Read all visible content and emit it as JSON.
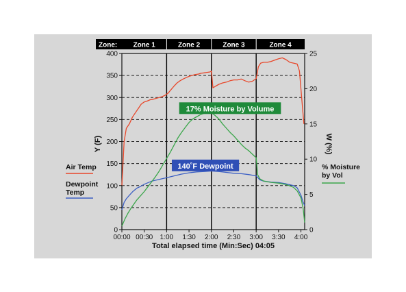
{
  "chart_data": {
    "type": "line",
    "zones": {
      "header": "Zone:",
      "labels": [
        "Zone 1",
        "Zone 2",
        "Zone 3",
        "Zone 4"
      ],
      "boundaries": [
        0,
        60,
        120,
        180,
        245
      ]
    },
    "xlabel": "Total elapsed time (Min:Sec) 04:05",
    "x_ticks": [
      {
        "t": 0,
        "label": "00:00"
      },
      {
        "t": 30,
        "label": "00:30"
      },
      {
        "t": 60,
        "label": "1:00"
      },
      {
        "t": 90,
        "label": "1:30"
      },
      {
        "t": 120,
        "label": "2:00"
      },
      {
        "t": 150,
        "label": "2:30"
      },
      {
        "t": 180,
        "label": "3:00"
      },
      {
        "t": 210,
        "label": "3:30"
      },
      {
        "t": 240,
        "label": "4:00"
      }
    ],
    "xlim": [
      0,
      245
    ],
    "ylabel_left": "Y (F)",
    "ylim_left": [
      0,
      400
    ],
    "yticks_left": [
      0,
      50,
      100,
      150,
      200,
      250,
      300,
      350,
      400
    ],
    "ylabel_right": "W (%)",
    "ylim_right": [
      0,
      25
    ],
    "yticks_right": [
      0,
      5,
      10,
      15,
      20,
      25
    ],
    "grid": "horizontal-dashed",
    "annotations": [
      {
        "text": "17% Moisture by Volume",
        "color": "#1f8a3a",
        "x": 145,
        "y_left": 275
      },
      {
        "text": "140˚F Dewpoint",
        "color": "#2f4fb6",
        "x": 112,
        "y_left": 145
      }
    ],
    "series": [
      {
        "name": "Air Temp",
        "axis": "left",
        "color": "#e8472a",
        "x": [
          0,
          3,
          6,
          10,
          14,
          18,
          22,
          26,
          30,
          34,
          38,
          42,
          46,
          50,
          54,
          58,
          62,
          66,
          70,
          74,
          78,
          82,
          86,
          90,
          94,
          98,
          102,
          106,
          110,
          114,
          118,
          120,
          122,
          126,
          130,
          135,
          140,
          145,
          150,
          155,
          160,
          165,
          170,
          175,
          180,
          183,
          186,
          190,
          195,
          200,
          205,
          210,
          215,
          220,
          225,
          230,
          235,
          238,
          241,
          244
        ],
        "values": [
          100,
          200,
          230,
          240,
          255,
          265,
          275,
          285,
          290,
          292,
          295,
          296,
          298,
          300,
          302,
          305,
          310,
          318,
          326,
          333,
          338,
          342,
          345,
          348,
          350,
          352,
          353,
          355,
          356,
          357,
          358,
          360,
          322,
          326,
          330,
          333,
          335,
          338,
          340,
          340,
          342,
          338,
          335,
          337,
          343,
          370,
          378,
          380,
          380,
          382,
          385,
          388,
          390,
          386,
          380,
          378,
          376,
          360,
          300,
          240
        ]
      },
      {
        "name": "Dewpoint Temp",
        "axis": "left",
        "color": "#3b5fc4",
        "x": [
          0,
          3,
          6,
          10,
          15,
          20,
          25,
          30,
          40,
          50,
          60,
          70,
          80,
          90,
          100,
          110,
          120,
          130,
          140,
          150,
          160,
          170,
          180,
          185,
          190,
          200,
          210,
          220,
          230,
          235,
          240,
          243,
          245
        ],
        "values": [
          45,
          62,
          70,
          78,
          87,
          94,
          98,
          103,
          110,
          114,
          118,
          122,
          126,
          129,
          131,
          132,
          133,
          132,
          130,
          128,
          127,
          125,
          122,
          113,
          110,
          108,
          107,
          104,
          100,
          95,
          78,
          62,
          55
        ]
      },
      {
        "name": "% Moisture by Vol",
        "axis": "right",
        "color": "#3aa64a",
        "x": [
          0,
          4,
          8,
          12,
          16,
          20,
          25,
          30,
          35,
          40,
          45,
          50,
          55,
          60,
          65,
          70,
          75,
          80,
          85,
          90,
          95,
          100,
          105,
          110,
          115,
          120,
          125,
          130,
          135,
          140,
          145,
          150,
          155,
          160,
          165,
          170,
          175,
          180,
          182,
          185,
          190,
          195,
          200,
          210,
          220,
          230,
          235,
          240,
          243,
          245
        ],
        "values": [
          0.5,
          1.5,
          2.3,
          3.0,
          3.6,
          4.2,
          4.8,
          5.4,
          6.1,
          6.8,
          7.5,
          8.3,
          9.2,
          10.1,
          11.0,
          12.0,
          13.0,
          13.8,
          14.5,
          15.2,
          15.7,
          16.0,
          16.3,
          16.5,
          16.6,
          16.6,
          16.2,
          15.7,
          15.0,
          14.4,
          13.8,
          13.3,
          12.7,
          12.1,
          11.6,
          11.2,
          10.7,
          10.2,
          7.8,
          7.2,
          6.9,
          6.8,
          6.7,
          6.6,
          6.4,
          6.0,
          5.5,
          4.5,
          3.0,
          1.0
        ]
      }
    ]
  }
}
